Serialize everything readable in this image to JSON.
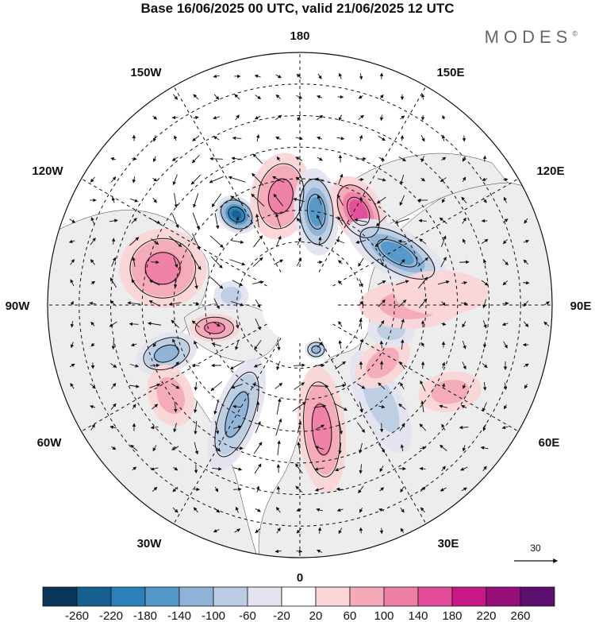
{
  "title": "Base 16/06/2025 00 UTC, valid 21/06/2025 12 UTC",
  "brand": "MODES",
  "brand_mark": "©",
  "longitude_labels": {
    "180": "180",
    "150E": "150E",
    "120E": "120E",
    "90E": "90E",
    "60E": "60E",
    "30E": "30E",
    "0": "0",
    "30W": "30W",
    "60W": "60W",
    "90W": "90W",
    "120W": "120W",
    "150W": "150W"
  },
  "reference_vector": "30",
  "colorbar": {
    "colors": [
      "#0b3558",
      "#15608f",
      "#2a80b8",
      "#5499c8",
      "#8fb2d6",
      "#bccde3",
      "#e4e4f0",
      "#ffffff",
      "#fad6d8",
      "#f4aab8",
      "#ee7fa4",
      "#e24c98",
      "#c81986",
      "#97107a",
      "#5b0f6e"
    ],
    "ticks": [
      "-260",
      "-220",
      "-180",
      "-140",
      "-100",
      "-60",
      "-20",
      "20",
      "60",
      "100",
      "140",
      "180",
      "220",
      "260"
    ]
  },
  "anomaly_blobs": [
    {
      "lon": 215,
      "lat": 55,
      "value": -230,
      "sx": 28,
      "sy": 22,
      "rot": 35
    },
    {
      "lon": 190,
      "lat": 55,
      "value": 110,
      "sx": 38,
      "sy": 55,
      "rot": 10
    },
    {
      "lon": 170,
      "lat": 60,
      "value": -140,
      "sx": 28,
      "sy": 55,
      "rot": -5
    },
    {
      "lon": 148,
      "lat": 55,
      "value": 140,
      "sx": 30,
      "sy": 48,
      "rot": -30
    },
    {
      "lon": 118,
      "lat": 55,
      "value": -140,
      "sx": 30,
      "sy": 70,
      "rot": -60
    },
    {
      "lon": 255,
      "lat": 45,
      "value": 100,
      "sx": 55,
      "sy": 50,
      "rot": 0
    },
    {
      "lon": 262,
      "lat": 68,
      "value": -70,
      "sx": 22,
      "sy": 18,
      "rot": 0
    },
    {
      "lon": 285,
      "lat": 62,
      "value": 110,
      "sx": 32,
      "sy": 18,
      "rot": 0
    },
    {
      "lon": 290,
      "lat": 45,
      "value": -110,
      "sx": 40,
      "sy": 25,
      "rot": -20
    },
    {
      "lon": 305,
      "lat": 40,
      "value": 90,
      "sx": 28,
      "sy": 40,
      "rot": -20
    },
    {
      "lon": 330,
      "lat": 50,
      "value": -130,
      "sx": 28,
      "sy": 75,
      "rot": 20
    },
    {
      "lon": 10,
      "lat": 50,
      "value": 120,
      "sx": 30,
      "sy": 80,
      "rot": -5
    },
    {
      "lon": 40,
      "lat": 50,
      "value": -80,
      "sx": 28,
      "sy": 70,
      "rot": -25
    },
    {
      "lon": 55,
      "lat": 58,
      "value": 70,
      "sx": 40,
      "sy": 25,
      "rot": -40
    },
    {
      "lon": 75,
      "lat": 60,
      "value": -60,
      "sx": 30,
      "sy": 22,
      "rot": 0
    },
    {
      "lon": 90,
      "lat": 55,
      "value": 60,
      "sx": 65,
      "sy": 30,
      "rot": 0
    },
    {
      "lon": 60,
      "lat": 35,
      "value": 60,
      "sx": 40,
      "sy": 25,
      "rot": -10
    },
    {
      "lon": 95,
      "lat": 45,
      "value": 40,
      "sx": 60,
      "sy": 28,
      "rot": 0
    },
    {
      "lon": 20,
      "lat": 75,
      "value": -100,
      "sx": 14,
      "sy": 12,
      "rot": 0
    }
  ]
}
